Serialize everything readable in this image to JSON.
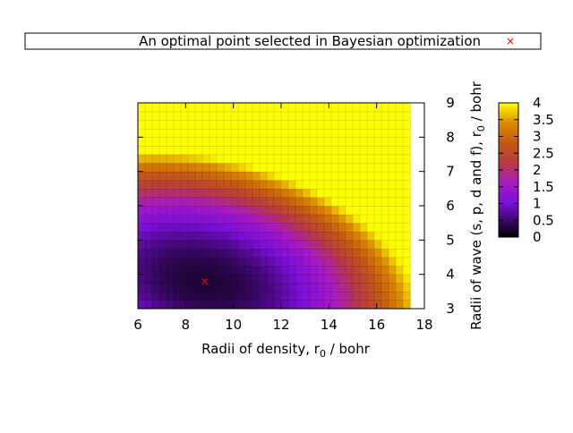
{
  "chart_data": {
    "type": "heatmap",
    "legend": {
      "label": "An optimal point selected in Bayesian optimization",
      "marker": "×",
      "marker_color": "#ff0000",
      "placement": "top"
    },
    "xlabel": {
      "prefix": "Radii of density, r",
      "sub": "0",
      "suffix": " / bohr"
    },
    "ylabel": {
      "prefix": "Radii of wave (s, p, d and f), r",
      "sub": "0",
      "suffix": " / bohr"
    },
    "xlim": [
      6,
      18
    ],
    "ylim": [
      3,
      9
    ],
    "data_extent_x": [
      6,
      17.4
    ],
    "data_extent_y": [
      3,
      9
    ],
    "x_ticks": [
      "6",
      "8",
      "10",
      "12",
      "14",
      "16",
      "18"
    ],
    "y_ticks": [
      "3",
      "4",
      "5",
      "6",
      "7",
      "8",
      "9"
    ],
    "colorbar": {
      "range": [
        0,
        4
      ],
      "ticks": [
        "0",
        "0.5",
        "1",
        "1.5",
        "2",
        "2.5",
        "3",
        "3.5",
        "4"
      ],
      "palette": "gnuplot-pm3d"
    },
    "optimal_point": {
      "x": 8.8,
      "y": 3.8
    },
    "surface_description": "z = 0.05*(x-8.8)^2 + 0.28*(y-3.8)^2 + 0.06*(x-8.8)*(y-3.8) + 0.25, clipped to [0,4]",
    "grid": false
  }
}
